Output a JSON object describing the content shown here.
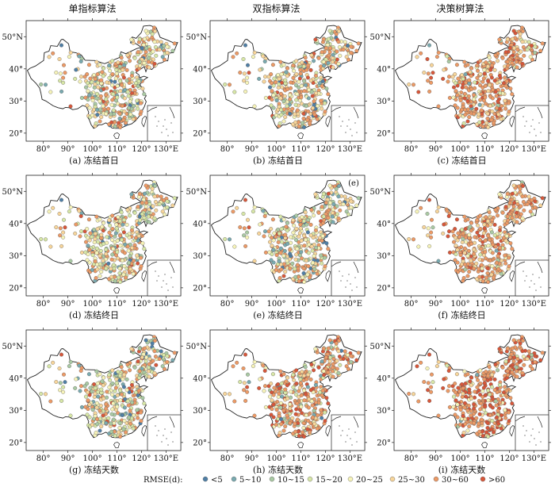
{
  "columns": [
    "单指标算法",
    "双指标算法",
    "决策树算法"
  ],
  "rows": [
    {
      "key": "freeze_first_day"
    },
    {
      "key": "freeze_last_day"
    },
    {
      "key": "freeze_days"
    }
  ],
  "captions": [
    [
      "(a) 冻结首日",
      "(b) 冻结首日",
      "(c) 冻结首日"
    ],
    [
      "(d) 冻结终日",
      "(e) 冻结终日",
      "(f) 冻结终日"
    ],
    [
      "(g) 冻结天数",
      "(h) 冻结天数",
      "(i) 冻结天数"
    ]
  ],
  "x_ticks": [
    "80°",
    "90°",
    "100°",
    "110°",
    "120°",
    "130°E"
  ],
  "y_ticks": [
    "50°N",
    "40°",
    "30°",
    "20°"
  ],
  "panel_marker": "(e)",
  "legend": {
    "title": "RMSE(d):",
    "items": [
      {
        "label": "<5",
        "color": "#4f7fa6"
      },
      {
        "label": "5~10",
        "color": "#79aab0"
      },
      {
        "label": "10~15",
        "color": "#a9c9a3"
      },
      {
        "label": "15~20",
        "color": "#d7e6a6"
      },
      {
        "label": "20~25",
        "color": "#f6f3b8"
      },
      {
        "label": "25~30",
        "color": "#f7d59a"
      },
      {
        "label": "30~60",
        "color": "#ec9a66"
      },
      {
        "label": ">60",
        "color": "#d7573a"
      }
    ]
  },
  "class_weights": [
    [
      0.03,
      0.06,
      0.1,
      0.14,
      0.16,
      0.2,
      0.27,
      0.04
    ],
    [
      0.03,
      0.05,
      0.08,
      0.12,
      0.16,
      0.22,
      0.3,
      0.04
    ],
    [
      0.0,
      0.01,
      0.02,
      0.04,
      0.08,
      0.16,
      0.55,
      0.14
    ],
    [
      0.03,
      0.06,
      0.12,
      0.16,
      0.18,
      0.18,
      0.24,
      0.03
    ],
    [
      0.03,
      0.06,
      0.1,
      0.14,
      0.17,
      0.2,
      0.27,
      0.03
    ],
    [
      0.0,
      0.01,
      0.03,
      0.05,
      0.1,
      0.18,
      0.52,
      0.11
    ],
    [
      0.04,
      0.08,
      0.14,
      0.16,
      0.16,
      0.16,
      0.22,
      0.04
    ],
    [
      0.01,
      0.03,
      0.05,
      0.07,
      0.1,
      0.14,
      0.42,
      0.18
    ],
    [
      0.0,
      0.01,
      0.02,
      0.03,
      0.05,
      0.08,
      0.46,
      0.35
    ]
  ]
}
